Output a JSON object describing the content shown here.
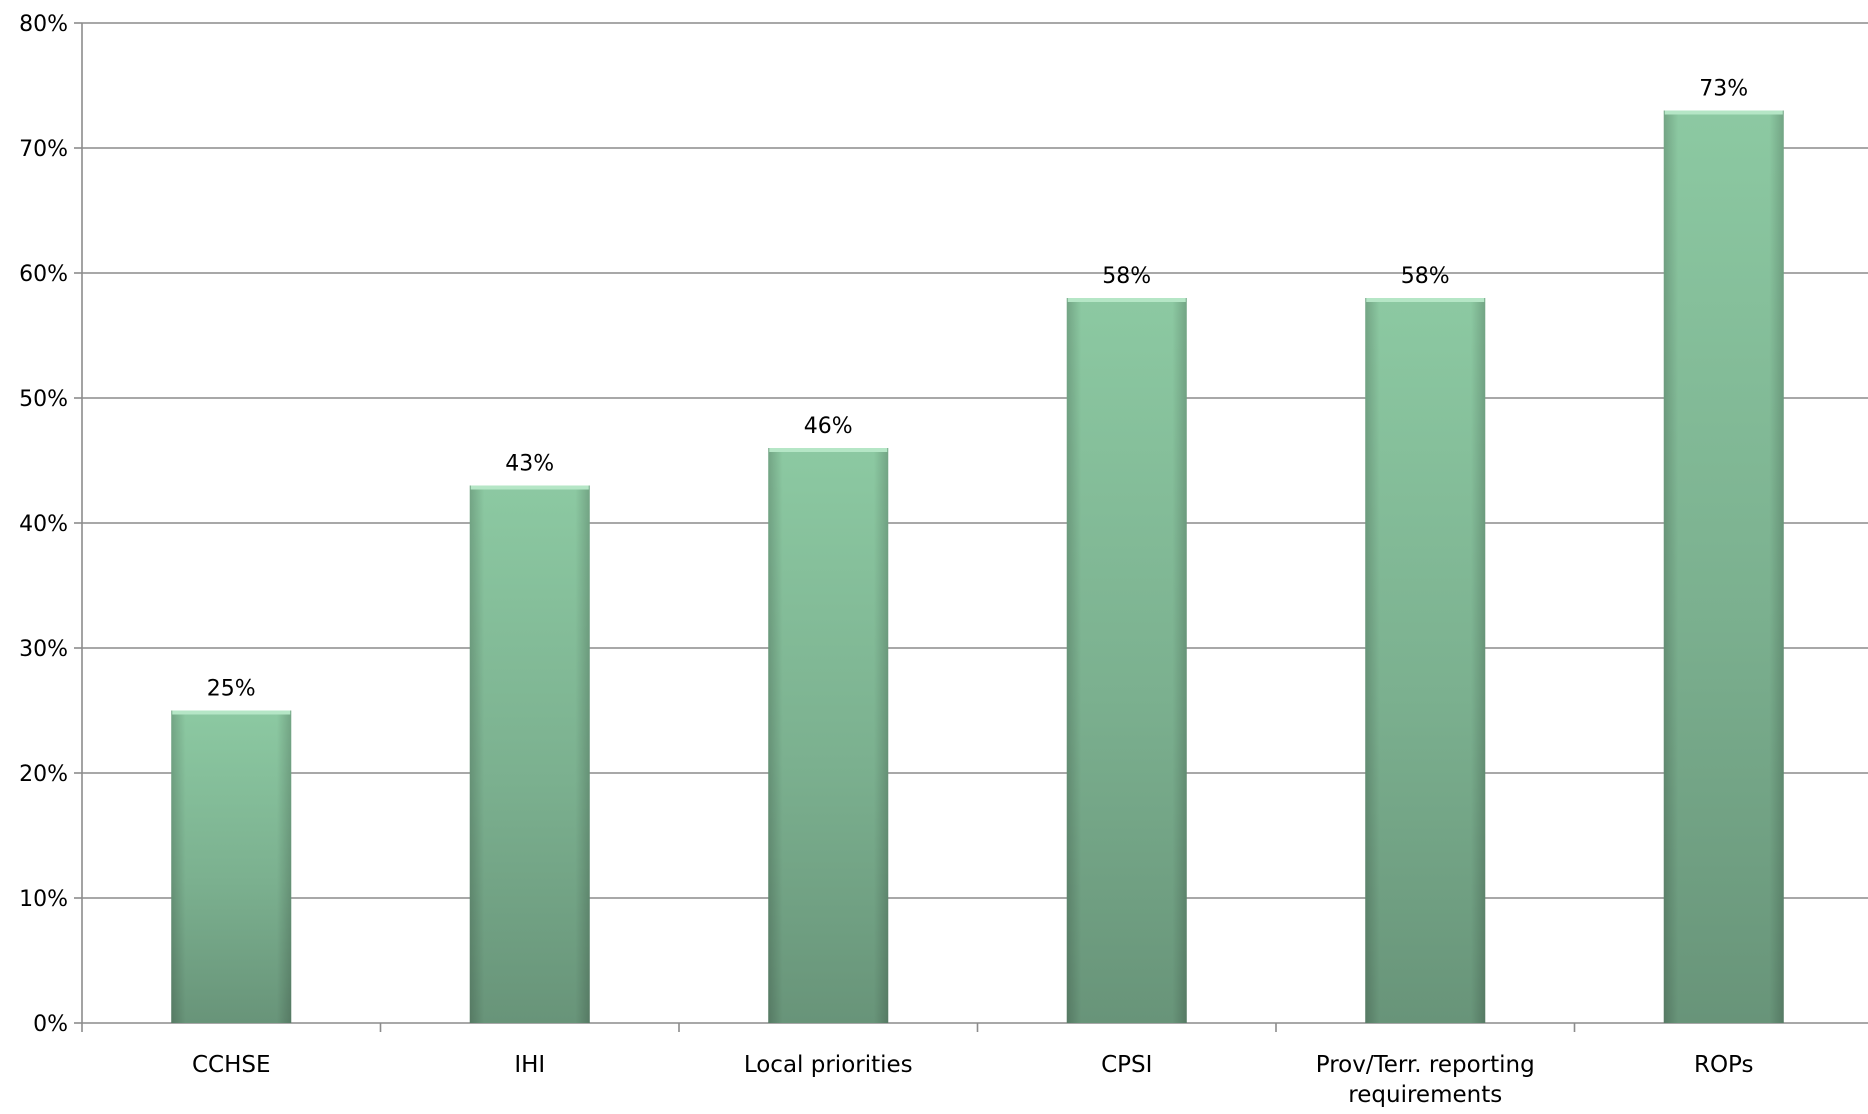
{
  "chart_data": {
    "type": "bar",
    "title": "",
    "xlabel": "",
    "ylabel": "",
    "categories": [
      [
        "CCHSE"
      ],
      [
        "IHI"
      ],
      [
        "Local priorities"
      ],
      [
        "CPSI"
      ],
      [
        "Prov/Terr. reporting",
        "requirements"
      ],
      [
        "ROPs"
      ]
    ],
    "values": [
      25,
      43,
      46,
      58,
      58,
      73
    ],
    "data_labels": [
      "25%",
      "43%",
      "46%",
      "58%",
      "58%",
      "73%"
    ],
    "ylim": [
      0,
      80
    ],
    "yticks": [
      0,
      10,
      20,
      30,
      40,
      50,
      60,
      70,
      80
    ],
    "ytick_labels": [
      "0%",
      "10%",
      "20%",
      "30%",
      "40%",
      "50%",
      "60%",
      "70%",
      "80%"
    ],
    "grid": true,
    "legend": "none",
    "colors": {
      "bar_top": "#8cc9a2",
      "bar_mid": "#7bb08f",
      "bar_bottom": "#689479",
      "bar_cap": "#b5e6c6",
      "gridline": "#8c8c8c",
      "axis": "#8c8c8c"
    }
  }
}
